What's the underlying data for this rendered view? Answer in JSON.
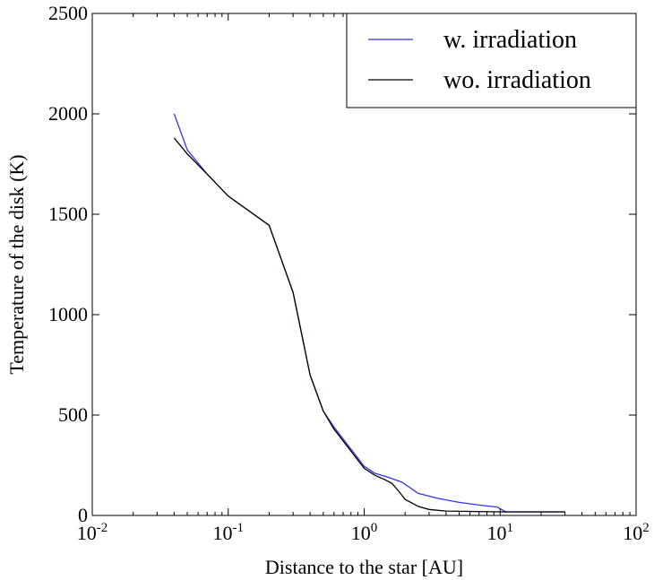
{
  "chart_data": {
    "type": "line",
    "title": "",
    "xlabel": "Distance to the star [AU]",
    "ylabel": "Temperature of the disk (K)",
    "xscale": "log",
    "xlim": [
      0.01,
      100
    ],
    "ylim": [
      0,
      2500
    ],
    "x_ticks": [
      {
        "value": 0.01,
        "base": "10",
        "exp": "-2"
      },
      {
        "value": 0.1,
        "base": "10",
        "exp": "-1"
      },
      {
        "value": 1,
        "base": "10",
        "exp": "0"
      },
      {
        "value": 10,
        "base": "10",
        "exp": "1"
      },
      {
        "value": 100,
        "base": "10",
        "exp": "2"
      }
    ],
    "y_ticks": [
      0,
      500,
      1000,
      1500,
      2000,
      2500
    ],
    "grid": false,
    "legend_position": "top-right",
    "series": [
      {
        "name": "w. irradiation",
        "color": "#3333ee",
        "x": [
          0.04,
          0.05,
          0.07,
          0.1,
          0.2,
          0.3,
          0.4,
          0.5,
          0.6,
          0.8,
          1.0,
          1.2,
          1.5,
          1.9,
          2.5,
          3.5,
          5,
          7,
          9.5,
          11,
          15,
          30
        ],
        "y": [
          2000,
          1820,
          1700,
          1590,
          1445,
          1110,
          700,
          520,
          440,
          330,
          245,
          210,
          190,
          165,
          110,
          85,
          65,
          52,
          42,
          18,
          18,
          18
        ]
      },
      {
        "name": "wo. irradiation",
        "color": "#000000",
        "x": [
          0.04,
          0.05,
          0.07,
          0.1,
          0.2,
          0.3,
          0.4,
          0.5,
          0.6,
          0.8,
          1.0,
          1.2,
          1.4,
          1.6,
          1.8,
          2.0,
          2.5,
          3.0,
          4.0,
          6,
          10,
          30
        ],
        "y": [
          1880,
          1800,
          1700,
          1590,
          1445,
          1110,
          700,
          520,
          430,
          320,
          235,
          200,
          180,
          160,
          120,
          80,
          45,
          30,
          22,
          20,
          18,
          18
        ]
      }
    ]
  }
}
